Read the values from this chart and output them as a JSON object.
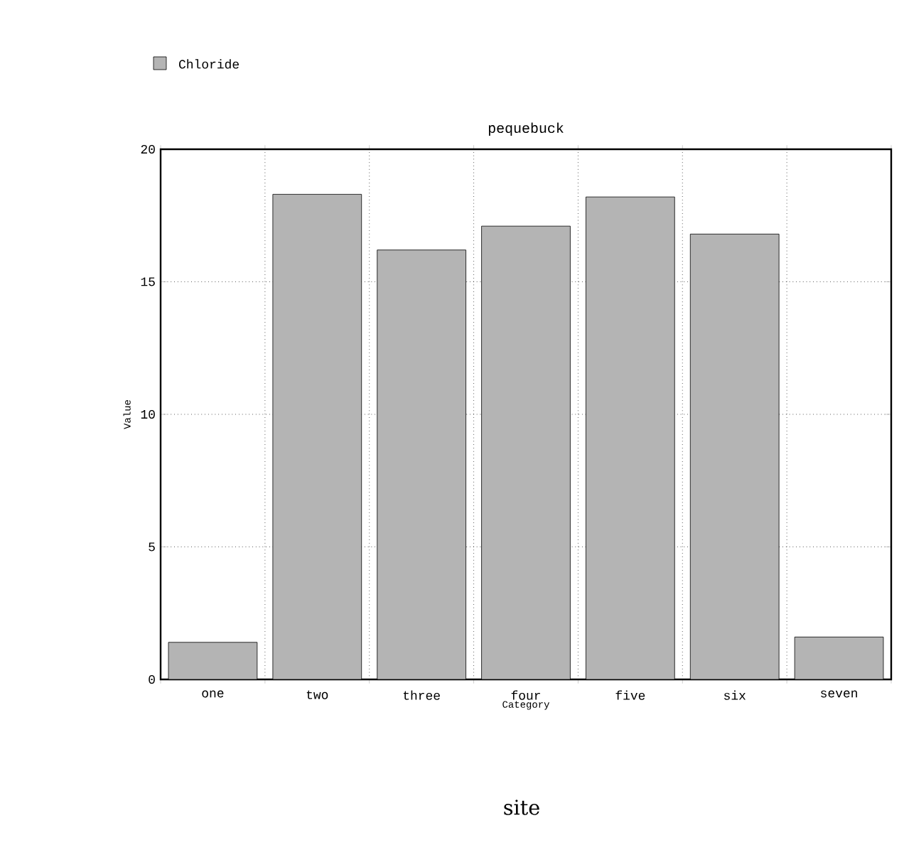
{
  "chart_data": {
    "type": "bar",
    "title": "pequebuck",
    "xlabel": "Category",
    "ylabel": "Value",
    "annotations": [
      "site"
    ],
    "categories": [
      "one",
      "two",
      "three",
      "four",
      "five",
      "six",
      "seven"
    ],
    "series": [
      {
        "name": "Chloride",
        "color": "#b4b4b4",
        "values": [
          1.4,
          18.3,
          16.2,
          17.1,
          18.2,
          16.8,
          1.6
        ]
      }
    ],
    "ylim": [
      0,
      20
    ],
    "yticks": [
      0,
      5,
      10,
      15,
      20
    ],
    "grid": true,
    "legend": "top left"
  }
}
